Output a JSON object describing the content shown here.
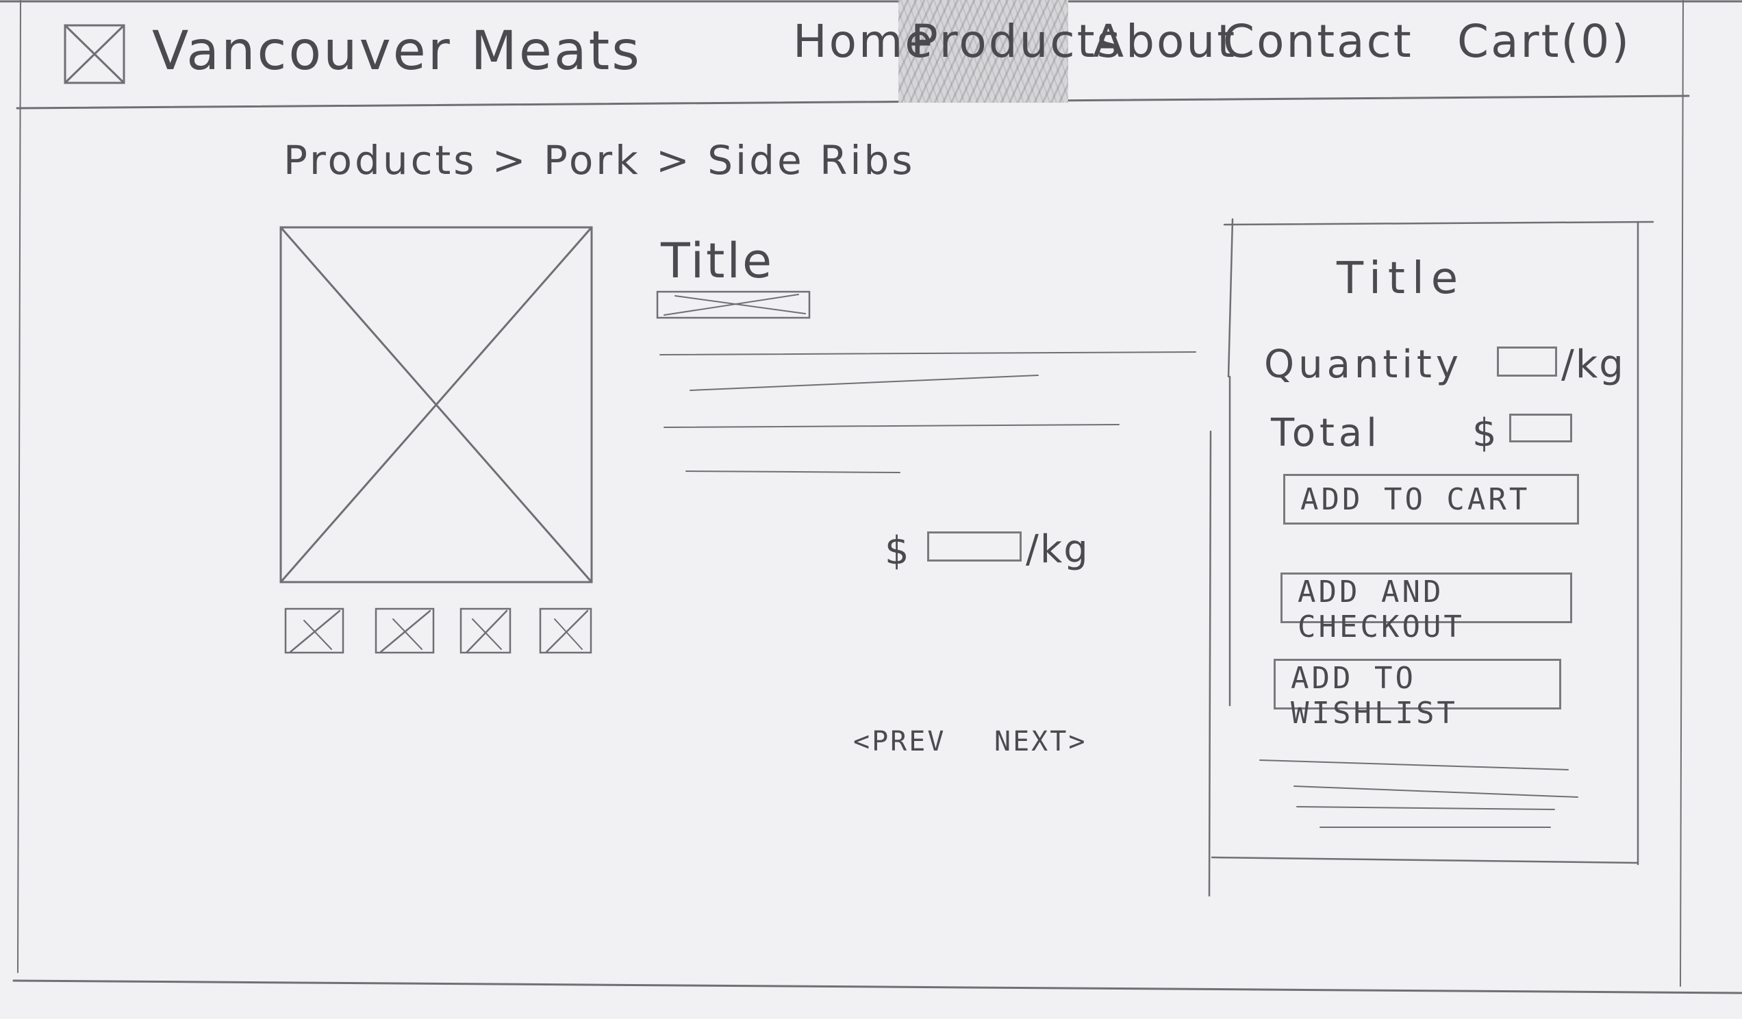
{
  "header": {
    "brand": "Vancouver Meats",
    "nav": {
      "home": "Home",
      "products": "Products",
      "about": "About",
      "contact": "Contact",
      "cart": "Cart(0)"
    }
  },
  "breadcrumb": "Products > Pork > Side Ribs",
  "product": {
    "title": "Title",
    "price_currency": "$",
    "price_unit": "/kg"
  },
  "pager": {
    "prev": "<PREV",
    "next": "NEXT>"
  },
  "order_panel": {
    "title": "Title",
    "quantity_label": "Quantity",
    "quantity_unit": "/kg",
    "total_label": "Total",
    "total_currency": "$",
    "add_to_cart": "ADD TO CART",
    "add_and_checkout": "ADD AND CHECKOUT",
    "add_to_wishlist": "ADD TO WISHLIST"
  }
}
